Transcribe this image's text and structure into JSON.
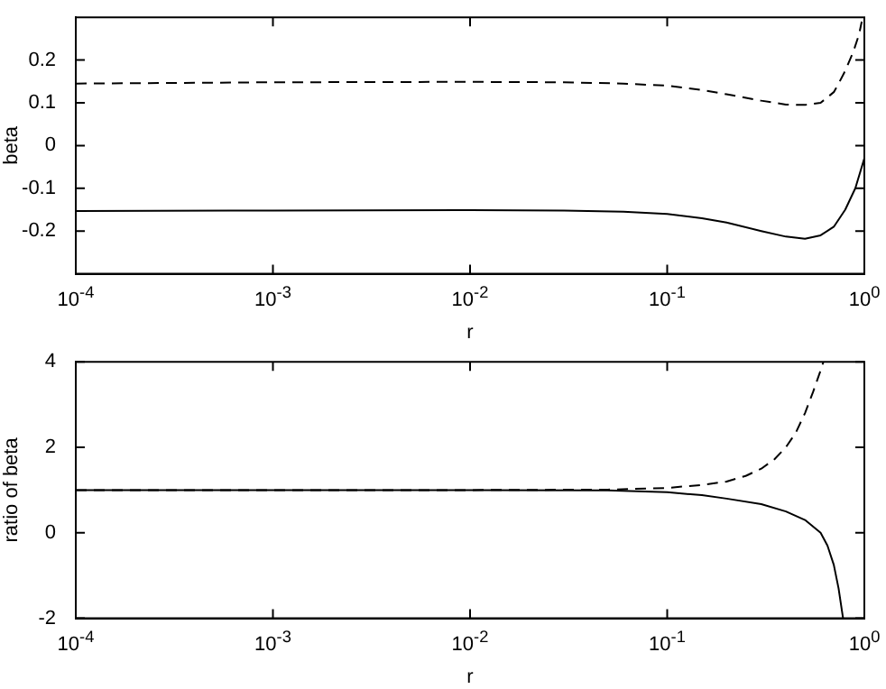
{
  "chart_data": [
    {
      "type": "line",
      "xlabel": "r",
      "ylabel": "beta",
      "log": "x",
      "grid": false,
      "legend": false,
      "xlim": [
        0.0001,
        1
      ],
      "ylim": [
        -0.3,
        0.3
      ],
      "xticks": [
        {
          "value": 0.0001,
          "label": "10$^{-4}$"
        },
        {
          "value": 0.001,
          "label": "10$^{-3}$"
        },
        {
          "value": 0.01,
          "label": "10$^{-2}$"
        },
        {
          "value": 0.1,
          "label": "10$^{-1}$"
        },
        {
          "value": 1,
          "label": "10$^{0}$"
        }
      ],
      "yticks": [
        -0.2,
        -0.1,
        0,
        0.1,
        0.2
      ],
      "series": [
        {
          "color": "#000000",
          "line_style": "dashed",
          "x": [
            0.0001,
            0.001,
            0.01,
            0.03,
            0.06,
            0.1,
            0.15,
            0.2,
            0.3,
            0.4,
            0.5,
            0.6,
            0.7,
            0.75,
            0.8,
            0.88,
            0.94,
            0.97
          ],
          "values": [
            0.145,
            0.148,
            0.149,
            0.148,
            0.145,
            0.14,
            0.13,
            0.12,
            0.105,
            0.096,
            0.095,
            0.1,
            0.125,
            0.15,
            0.175,
            0.22,
            0.26,
            0.29
          ]
        },
        {
          "color": "#000000",
          "line_style": "solid",
          "x": [
            0.0001,
            0.001,
            0.01,
            0.03,
            0.06,
            0.1,
            0.15,
            0.2,
            0.3,
            0.4,
            0.5,
            0.6,
            0.7,
            0.8,
            0.9,
            1
          ],
          "values": [
            -0.153,
            -0.152,
            -0.151,
            -0.152,
            -0.155,
            -0.16,
            -0.17,
            -0.18,
            -0.2,
            -0.213,
            -0.218,
            -0.21,
            -0.19,
            -0.15,
            -0.1,
            -0.03
          ]
        }
      ]
    },
    {
      "type": "line",
      "xlabel": "r",
      "ylabel": "ratio of beta",
      "log": "x",
      "grid": false,
      "legend": false,
      "xlim": [
        0.0001,
        1
      ],
      "ylim": [
        -2,
        4
      ],
      "xticks": [
        {
          "value": 0.0001,
          "label": "10$^{-4}$"
        },
        {
          "value": 0.001,
          "label": "10$^{-3}$"
        },
        {
          "value": 0.01,
          "label": "10$^{-2}$"
        },
        {
          "value": 0.1,
          "label": "10$^{-1}$"
        },
        {
          "value": 1,
          "label": "10$^{0}$"
        }
      ],
      "yticks": [
        -2,
        0,
        2,
        4
      ],
      "series": [
        {
          "color": "#000000",
          "line_style": "dashed",
          "x": [
            0.0001,
            0.001,
            0.01,
            0.05,
            0.1,
            0.15,
            0.2,
            0.25,
            0.3,
            0.35,
            0.4,
            0.45,
            0.5,
            0.55,
            0.6,
            0.62
          ],
          "values": [
            1,
            1,
            1,
            1.01,
            1.05,
            1.12,
            1.2,
            1.33,
            1.5,
            1.72,
            2,
            2.35,
            2.8,
            3.3,
            3.8,
            4
          ]
        },
        {
          "color": "#000000",
          "line_style": "solid",
          "x": [
            0.0001,
            0.001,
            0.01,
            0.05,
            0.1,
            0.15,
            0.2,
            0.3,
            0.4,
            0.5,
            0.6,
            0.65,
            0.7,
            0.74,
            0.78
          ],
          "values": [
            1,
            1,
            1,
            0.99,
            0.95,
            0.88,
            0.8,
            0.67,
            0.5,
            0.3,
            0,
            -0.3,
            -0.75,
            -1.3,
            -2
          ]
        }
      ]
    }
  ]
}
